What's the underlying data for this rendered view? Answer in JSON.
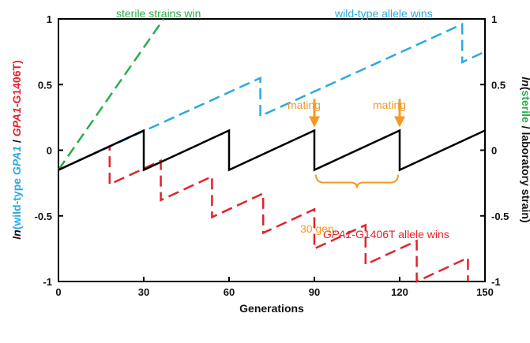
{
  "chart_data": {
    "type": "line",
    "x_range": [
      0,
      150
    ],
    "y_range": [
      -1,
      1
    ],
    "x_ticks": [
      0,
      30,
      60,
      90,
      120,
      150
    ],
    "y_ticks": [
      -1,
      -0.5,
      0,
      0.5,
      1
    ],
    "x_tick_labels": [
      "0",
      "30",
      "60",
      "90",
      "120",
      "150"
    ],
    "y_tick_labels": [
      "-1",
      "-0.5",
      "0",
      "0.5",
      "1"
    ],
    "xlabel": "Generations",
    "ylabel_left": {
      "prefix": "ln",
      "part1": "(wild-type ",
      "part2": "GPA1",
      "part3": " / ",
      "part4": "GPA1",
      "part5": "-G1406T)"
    },
    "ylabel_right": {
      "prefix": "ln",
      "part1": "(",
      "part2": "sterile",
      "part3": " / laboratory strain)"
    },
    "colors": {
      "black": "#000000",
      "green": "#2aab4a",
      "blue": "#29a9e1",
      "red": "#e0232b",
      "orange": "#f39a22"
    },
    "series": [
      {
        "key": "sterile",
        "dashed": true,
        "color": "#2aab4a",
        "points": [
          [
            0,
            -0.15
          ],
          [
            37,
            1.0
          ]
        ]
      },
      {
        "key": "wildtype",
        "dashed": true,
        "color": "#29a9e1",
        "points": [
          [
            0,
            -0.15
          ],
          [
            71,
            0.55
          ],
          [
            71,
            0.26
          ],
          [
            142,
            0.96
          ],
          [
            142,
            0.67
          ],
          [
            150,
            0.75
          ]
        ]
      },
      {
        "key": "gpa1",
        "dashed": true,
        "color": "#e0232b",
        "points": [
          [
            0,
            -0.15
          ],
          [
            18,
            0.03
          ],
          [
            18,
            -0.26
          ],
          [
            36,
            -0.08
          ],
          [
            36,
            -0.38
          ],
          [
            54,
            -0.2
          ],
          [
            54,
            -0.51
          ],
          [
            72,
            -0.33
          ],
          [
            72,
            -0.63
          ],
          [
            90,
            -0.45
          ],
          [
            90,
            -0.75
          ],
          [
            108,
            -0.57
          ],
          [
            108,
            -0.87
          ],
          [
            126,
            -0.69
          ],
          [
            126,
            -1.0
          ],
          [
            144,
            -0.82
          ],
          [
            144,
            -1.0
          ]
        ]
      },
      {
        "key": "neutral",
        "dashed": false,
        "color": "#000000",
        "points": [
          [
            0,
            -0.15
          ],
          [
            30,
            0.15
          ],
          [
            30,
            -0.15
          ],
          [
            60,
            0.15
          ],
          [
            60,
            -0.15
          ],
          [
            90,
            0.15
          ],
          [
            90,
            -0.15
          ],
          [
            120,
            0.15
          ],
          [
            120,
            -0.15
          ],
          [
            150,
            0.15
          ]
        ]
      }
    ],
    "annotations": {
      "sterile_label": "sterile strains win",
      "wildtype_label": "wild-type allele wins",
      "gpa1_label_italic": "GPA1",
      "gpa1_label_rest": "-G1406T allele wins",
      "mating_label": "mating",
      "brace_label": "30 gen."
    },
    "mating_x": [
      90,
      120
    ]
  }
}
